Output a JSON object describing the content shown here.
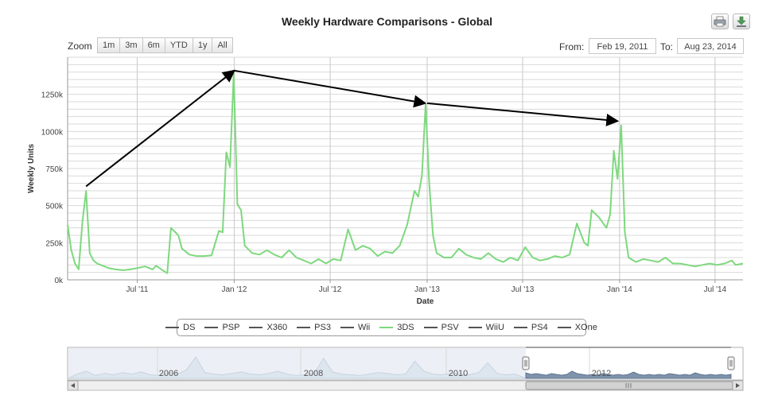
{
  "header": {
    "title": "Weekly Hardware Comparisons - Global",
    "print_icon": "printer-icon",
    "export_icon": "download-icon"
  },
  "range_selector": {
    "zoom_label": "Zoom",
    "buttons": [
      "1m",
      "3m",
      "6m",
      "YTD",
      "1y",
      "All"
    ],
    "from_label": "From:",
    "from_value": "Feb 19, 2011",
    "to_label": "To:",
    "to_value": "Aug 23, 2014"
  },
  "legend": {
    "items": [
      {
        "label": "DS",
        "color": "#555555"
      },
      {
        "label": "PSP",
        "color": "#555555"
      },
      {
        "label": "X360",
        "color": "#555555"
      },
      {
        "label": "PS3",
        "color": "#555555"
      },
      {
        "label": "Wii",
        "color": "#555555"
      },
      {
        "label": "3DS",
        "color": "#7ed87e",
        "active": true
      },
      {
        "label": "PSV",
        "color": "#555555"
      },
      {
        "label": "WiiU",
        "color": "#555555"
      },
      {
        "label": "PS4",
        "color": "#555555"
      },
      {
        "label": "XOne",
        "color": "#555555"
      }
    ]
  },
  "navigator": {
    "labels": [
      "2006",
      "2008",
      "2010",
      "2012"
    ]
  },
  "chart_data": {
    "type": "line",
    "title": "Weekly Hardware Comparisons - Global",
    "xlabel": "Date",
    "ylabel": "Weekly Units",
    "x_tick_labels": [
      "Jul '11",
      "Jan '12",
      "Jul '12",
      "Jan '13",
      "Jul '13",
      "Jan '14",
      "Jul '14"
    ],
    "x_ticks": [
      "2011-07-01",
      "2012-01-01",
      "2012-07-01",
      "2013-01-01",
      "2013-07-01",
      "2014-01-01",
      "2014-07-01"
    ],
    "y_tick_labels": [
      "0k",
      "250k",
      "500k",
      "750k",
      "1000k",
      "1250k"
    ],
    "y_ticks": [
      0,
      250000,
      500000,
      750000,
      1000000,
      1250000
    ],
    "xlim": [
      "2011-02-19",
      "2014-08-23"
    ],
    "ylim": [
      0,
      1500000
    ],
    "grid": true,
    "series": [
      {
        "name": "3DS",
        "color": "#7ed87e",
        "points": [
          [
            "2011-02-19",
            370000
          ],
          [
            "2011-02-26",
            200000
          ],
          [
            "2011-03-05",
            110000
          ],
          [
            "2011-03-12",
            70000
          ],
          [
            "2011-03-19",
            390000
          ],
          [
            "2011-03-26",
            600000
          ],
          [
            "2011-04-02",
            180000
          ],
          [
            "2011-04-09",
            130000
          ],
          [
            "2011-04-16",
            110000
          ],
          [
            "2011-04-23",
            100000
          ],
          [
            "2011-05-07",
            80000
          ],
          [
            "2011-05-21",
            70000
          ],
          [
            "2011-06-04",
            65000
          ],
          [
            "2011-06-18",
            70000
          ],
          [
            "2011-07-02",
            80000
          ],
          [
            "2011-07-16",
            90000
          ],
          [
            "2011-07-30",
            70000
          ],
          [
            "2011-08-06",
            95000
          ],
          [
            "2011-08-20",
            60000
          ],
          [
            "2011-08-27",
            45000
          ],
          [
            "2011-09-03",
            350000
          ],
          [
            "2011-09-17",
            300000
          ],
          [
            "2011-09-24",
            210000
          ],
          [
            "2011-10-08",
            170000
          ],
          [
            "2011-10-22",
            160000
          ],
          [
            "2011-11-05",
            160000
          ],
          [
            "2011-11-19",
            165000
          ],
          [
            "2011-12-03",
            330000
          ],
          [
            "2011-12-10",
            320000
          ],
          [
            "2011-12-17",
            860000
          ],
          [
            "2011-12-24",
            760000
          ],
          [
            "2011-12-31",
            1390000
          ],
          [
            "2012-01-07",
            510000
          ],
          [
            "2012-01-14",
            470000
          ],
          [
            "2012-01-21",
            230000
          ],
          [
            "2012-02-04",
            180000
          ],
          [
            "2012-02-18",
            170000
          ],
          [
            "2012-03-03",
            200000
          ],
          [
            "2012-03-17",
            170000
          ],
          [
            "2012-03-31",
            150000
          ],
          [
            "2012-04-14",
            200000
          ],
          [
            "2012-04-28",
            150000
          ],
          [
            "2012-05-12",
            130000
          ],
          [
            "2012-05-26",
            110000
          ],
          [
            "2012-06-09",
            140000
          ],
          [
            "2012-06-23",
            110000
          ],
          [
            "2012-07-07",
            140000
          ],
          [
            "2012-07-21",
            130000
          ],
          [
            "2012-08-04",
            340000
          ],
          [
            "2012-08-18",
            200000
          ],
          [
            "2012-09-01",
            230000
          ],
          [
            "2012-09-15",
            210000
          ],
          [
            "2012-09-29",
            160000
          ],
          [
            "2012-10-13",
            190000
          ],
          [
            "2012-10-27",
            180000
          ],
          [
            "2012-11-10",
            230000
          ],
          [
            "2012-11-24",
            370000
          ],
          [
            "2012-12-08",
            600000
          ],
          [
            "2012-12-15",
            560000
          ],
          [
            "2012-12-22",
            700000
          ],
          [
            "2012-12-29",
            1180000
          ],
          [
            "2013-01-05",
            640000
          ],
          [
            "2013-01-12",
            300000
          ],
          [
            "2013-01-19",
            180000
          ],
          [
            "2013-02-02",
            150000
          ],
          [
            "2013-02-16",
            150000
          ],
          [
            "2013-03-02",
            210000
          ],
          [
            "2013-03-16",
            170000
          ],
          [
            "2013-03-30",
            150000
          ],
          [
            "2013-04-13",
            140000
          ],
          [
            "2013-04-27",
            180000
          ],
          [
            "2013-05-11",
            140000
          ],
          [
            "2013-05-25",
            120000
          ],
          [
            "2013-06-08",
            150000
          ],
          [
            "2013-06-22",
            130000
          ],
          [
            "2013-07-06",
            220000
          ],
          [
            "2013-07-20",
            150000
          ],
          [
            "2013-08-03",
            130000
          ],
          [
            "2013-08-17",
            140000
          ],
          [
            "2013-08-31",
            160000
          ],
          [
            "2013-09-14",
            150000
          ],
          [
            "2013-09-28",
            170000
          ],
          [
            "2013-10-12",
            380000
          ],
          [
            "2013-10-26",
            250000
          ],
          [
            "2013-11-02",
            230000
          ],
          [
            "2013-11-09",
            470000
          ],
          [
            "2013-11-23",
            420000
          ],
          [
            "2013-12-07",
            350000
          ],
          [
            "2013-12-14",
            440000
          ],
          [
            "2013-12-21",
            870000
          ],
          [
            "2013-12-28",
            680000
          ],
          [
            "2014-01-04",
            1040000
          ],
          [
            "2014-01-11",
            320000
          ],
          [
            "2014-01-18",
            150000
          ],
          [
            "2014-02-01",
            120000
          ],
          [
            "2014-02-15",
            140000
          ],
          [
            "2014-03-01",
            130000
          ],
          [
            "2014-03-15",
            120000
          ],
          [
            "2014-03-29",
            150000
          ],
          [
            "2014-04-12",
            110000
          ],
          [
            "2014-04-26",
            110000
          ],
          [
            "2014-05-10",
            100000
          ],
          [
            "2014-05-24",
            90000
          ],
          [
            "2014-06-07",
            100000
          ],
          [
            "2014-06-21",
            110000
          ],
          [
            "2014-07-05",
            100000
          ],
          [
            "2014-07-19",
            110000
          ],
          [
            "2014-08-02",
            130000
          ],
          [
            "2014-08-09",
            100000
          ],
          [
            "2014-08-23",
            110000
          ]
        ]
      }
    ],
    "annotations": [
      {
        "type": "arrow",
        "from": [
          "2011-03-26",
          630000
        ],
        "to": [
          "2012-01-01",
          1410000
        ]
      },
      {
        "type": "arrow",
        "from": [
          "2012-01-01",
          1410000
        ],
        "to": [
          "2012-12-28",
          1190000
        ]
      },
      {
        "type": "arrow",
        "from": [
          "2013-01-01",
          1190000
        ],
        "to": [
          "2013-12-28",
          1070000
        ]
      }
    ]
  }
}
